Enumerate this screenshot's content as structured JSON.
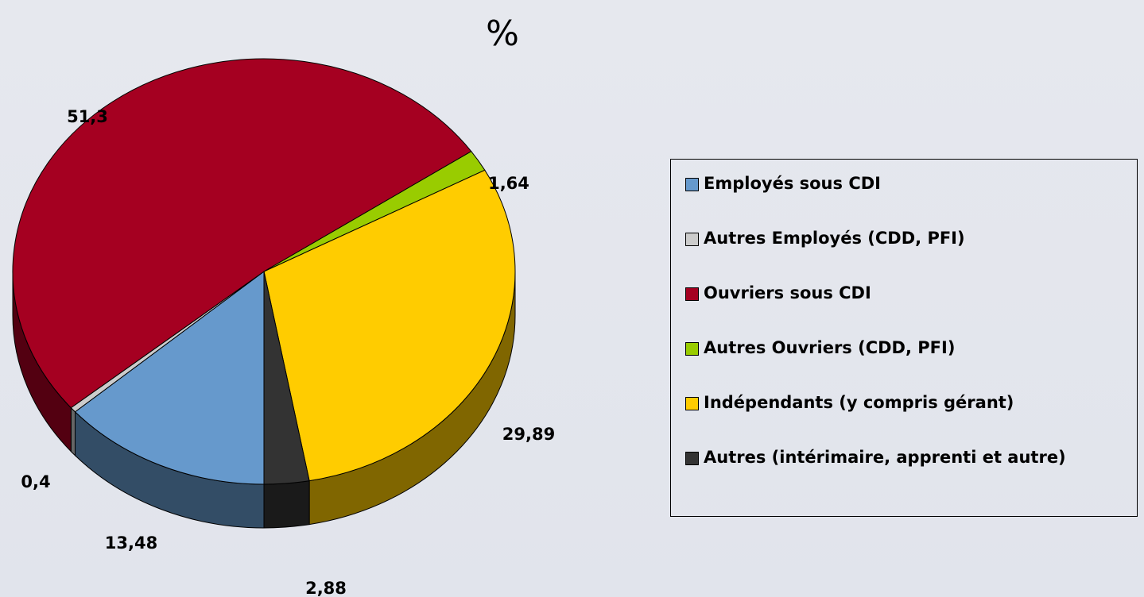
{
  "chart_data": {
    "type": "pie",
    "title": "%",
    "categories": [
      "Employés sous CDI",
      "Autres Employés (CDD, PFI)",
      "Ouvriers sous CDI",
      "Autres Ouvriers (CDD, PFI)",
      "Indépendants (y compris gérant)",
      "Autres (intérimaire, apprenti et autre)"
    ],
    "values": [
      13.48,
      0.4,
      51.3,
      1.64,
      29.89,
      2.88
    ],
    "value_labels": [
      "13,48",
      "0,4",
      "51,3",
      "1,64",
      "29,89",
      "2,88"
    ],
    "colors": [
      "#6699cc",
      "#cccccc",
      "#a50021",
      "#99cc00",
      "#ffcc00",
      "#333333"
    ],
    "legend": "right"
  }
}
